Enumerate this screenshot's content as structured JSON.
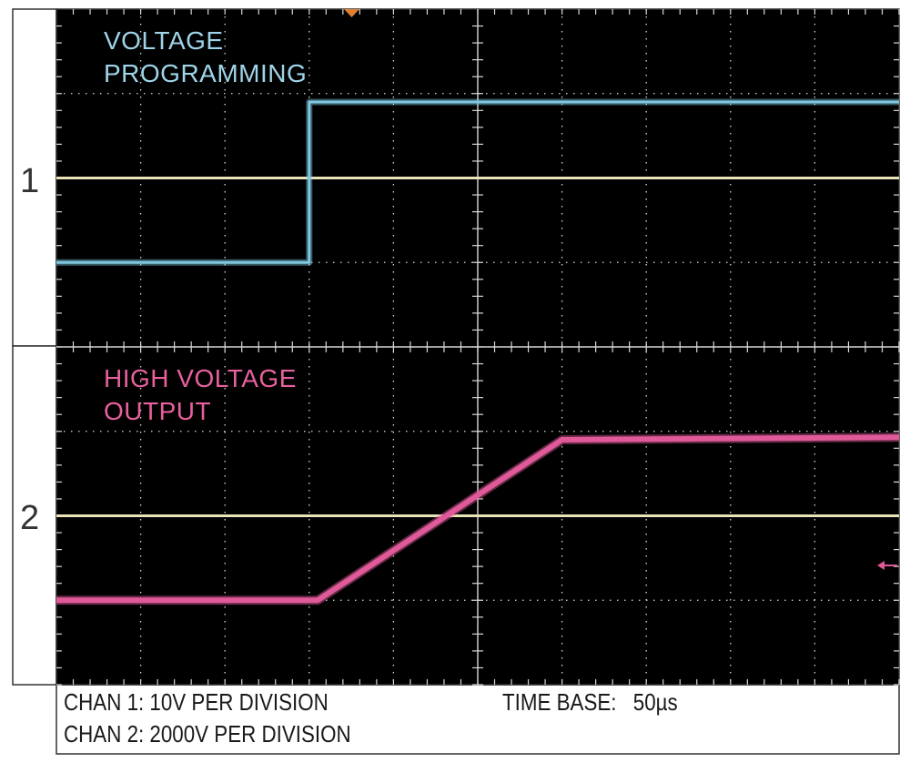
{
  "chart_data": {
    "type": "line",
    "title": "",
    "time_divisions": 10,
    "channels": [
      {
        "channel_label": "1",
        "name_lines": [
          "VOLTAGE",
          "PROGRAMMING"
        ],
        "color": "#7ec8e0",
        "units_per_division": "10V",
        "x": [
          0,
          3,
          3,
          10
        ],
        "y": [
          -1.0,
          -1.0,
          0.9,
          0.9
        ]
      },
      {
        "channel_label": "2",
        "name_lines": [
          "HIGH VOLTAGE",
          "OUTPUT"
        ],
        "color": "#e05a9a",
        "units_per_division": "2000V",
        "x": [
          0,
          3.1,
          6.0,
          10
        ],
        "y": [
          -1.0,
          -1.0,
          0.9,
          0.93
        ]
      }
    ]
  },
  "footer": {
    "chan1": "CHAN 1: 10V PER DIVISION",
    "chan2": "CHAN 2: 2000V PER DIVISION",
    "timebase_label": "TIME BASE:",
    "timebase_value": "50µs"
  },
  "colors": {
    "screen_bg": "#000000",
    "grid": "#d8d8d8",
    "reference_line": "#e8e4b8",
    "trigger_marker": "#e08030"
  }
}
